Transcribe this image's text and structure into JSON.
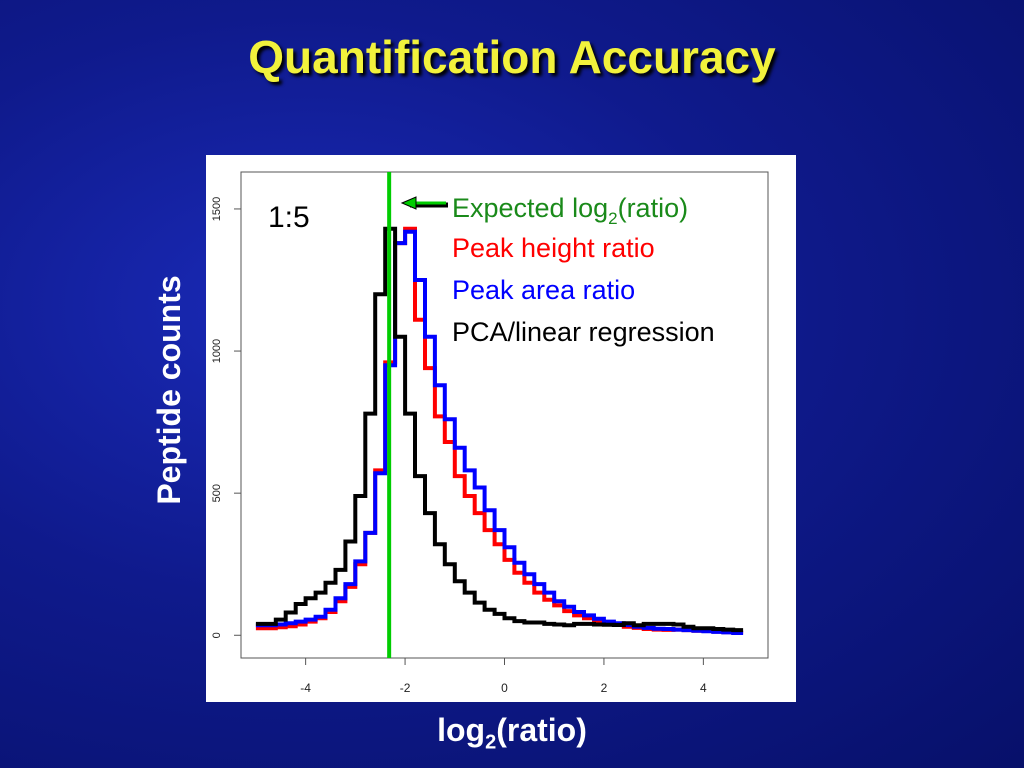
{
  "slide": {
    "title": "Quantification Accuracy",
    "ylabel": "Peptide counts",
    "xlabel": "log2(ratio)",
    "xlabel_main": "log",
    "xlabel_sub": "2",
    "xlabel_tail": "(ratio)"
  },
  "colors": {
    "background": "#0f1a8c",
    "title": "#f2f23c",
    "expected": "#00cc00",
    "peak_height": "#ff0000",
    "peak_area": "#0000ff",
    "pca": "#000000"
  },
  "chart_data": {
    "type": "line",
    "title": "",
    "xlabel": "log2(ratio)",
    "ylabel": "Peptide counts",
    "xlim": [
      -5.3,
      5.3
    ],
    "ylim": [
      -80,
      1630
    ],
    "xticks": [
      -4,
      -2,
      0,
      2,
      4
    ],
    "yticks": [
      0,
      500,
      1000,
      1500
    ],
    "annotation": "1:5",
    "expected_line": {
      "label": "Expected log2(ratio)",
      "label_main": "Expected log",
      "label_sub": "2",
      "label_tail": "(ratio)",
      "x": -2.32
    },
    "legend": {
      "placement": "top-right",
      "entries": [
        "Expected log2(ratio)",
        "Peak height ratio",
        "Peak area ratio",
        "PCA/linear regression"
      ]
    },
    "x": [
      -4.9,
      -4.7,
      -4.5,
      -4.3,
      -4.1,
      -3.9,
      -3.7,
      -3.5,
      -3.3,
      -3.1,
      -2.9,
      -2.7,
      -2.5,
      -2.3,
      -2.1,
      -1.9,
      -1.7,
      -1.5,
      -1.3,
      -1.1,
      -0.9,
      -0.7,
      -0.5,
      -0.3,
      -0.1,
      0.1,
      0.3,
      0.5,
      0.7,
      0.9,
      1.1,
      1.3,
      1.5,
      1.7,
      1.9,
      2.1,
      2.3,
      2.5,
      2.7,
      2.9,
      3.1,
      3.3,
      3.5,
      3.7,
      3.9,
      4.1,
      4.3,
      4.5,
      4.7
    ],
    "series": [
      {
        "name": "Peak height ratio",
        "values": [
          25,
          25,
          28,
          32,
          38,
          48,
          60,
          82,
          120,
          170,
          250,
          360,
          580,
          960,
          1380,
          1430,
          1110,
          940,
          770,
          680,
          560,
          490,
          430,
          370,
          320,
          265,
          220,
          185,
          150,
          125,
          105,
          85,
          70,
          60,
          48,
          42,
          36,
          30,
          26,
          22,
          20,
          19,
          20,
          18,
          16,
          15,
          13,
          11,
          10
        ]
      },
      {
        "name": "Peak area ratio",
        "values": [
          35,
          35,
          38,
          42,
          48,
          55,
          65,
          90,
          130,
          180,
          260,
          360,
          570,
          950,
          1380,
          1420,
          1250,
          1050,
          880,
          760,
          660,
          580,
          520,
          440,
          370,
          310,
          255,
          215,
          180,
          150,
          120,
          100,
          82,
          70,
          58,
          48,
          42,
          36,
          30,
          26,
          23,
          22,
          20,
          18,
          16,
          14,
          12,
          10,
          8
        ]
      },
      {
        "name": "PCA/linear regression",
        "values": [
          40,
          40,
          55,
          80,
          110,
          130,
          150,
          185,
          230,
          330,
          490,
          780,
          1200,
          1430,
          1050,
          780,
          560,
          430,
          320,
          250,
          190,
          150,
          115,
          90,
          75,
          60,
          50,
          45,
          45,
          40,
          38,
          35,
          40,
          40,
          38,
          37,
          36,
          42,
          35,
          40,
          40,
          40,
          38,
          30,
          25,
          25,
          22,
          20,
          18
        ]
      }
    ]
  }
}
